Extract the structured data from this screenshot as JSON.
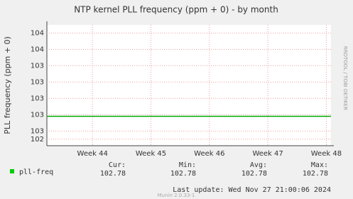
{
  "chart_data": {
    "type": "line",
    "title": "NTP kernel PLL frequency (ppm + 0) - by month",
    "y_label": "PLL frequency (ppm + 0)",
    "side_text": "RRDTOOL / TOBI OETIKER",
    "xlim": [
      43.22,
      48.08
    ],
    "xticks": [
      {
        "value": 44,
        "label": "Week 44"
      },
      {
        "value": 45,
        "label": "Week 45"
      },
      {
        "value": 46,
        "label": "Week 46"
      },
      {
        "value": 47,
        "label": "Week 47"
      },
      {
        "value": 48,
        "label": "Week 48"
      }
    ],
    "ylim": [
      102.42,
      103.9
    ],
    "yticks": [
      {
        "value": 103.8,
        "label": "104"
      },
      {
        "value": 103.6,
        "label": "104"
      },
      {
        "value": 103.4,
        "label": "103"
      },
      {
        "value": 103.2,
        "label": "103"
      },
      {
        "value": 103.0,
        "label": "103"
      },
      {
        "value": 102.8,
        "label": "103"
      },
      {
        "value": 102.6,
        "label": "103"
      },
      {
        "value": 102.5,
        "label": "102"
      }
    ],
    "grid": true,
    "series": [
      {
        "name": "pll-freq",
        "color": "#00aa00",
        "x": [
          43.22,
          48.08
        ],
        "values": [
          102.78,
          102.78
        ]
      }
    ],
    "stats_headers": [
      "Cur:",
      "Min:",
      "Avg:",
      "Max:"
    ],
    "stats": [
      102.78,
      102.78,
      102.78,
      102.78
    ],
    "last_update": "Last update: Wed Nov 27 21:00:06 2024",
    "footer": "Munin 2.0.33-1"
  }
}
